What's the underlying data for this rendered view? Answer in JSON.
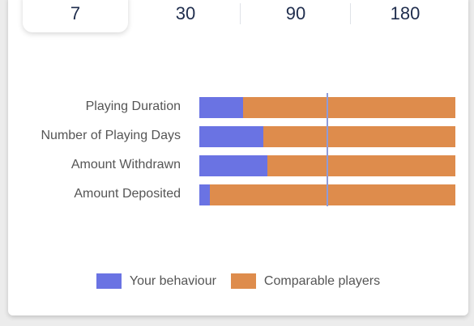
{
  "period_tabs": {
    "items": [
      {
        "label": "7",
        "selected": true
      },
      {
        "label": "30",
        "selected": false
      },
      {
        "label": "90",
        "selected": false
      },
      {
        "label": "180",
        "selected": false
      }
    ]
  },
  "chart_data": {
    "type": "bar",
    "orientation": "horizontal",
    "stacked": true,
    "categories": [
      "Playing Duration",
      "Number of Playing Days",
      "Amount Withdrawn",
      "Amount Deposited"
    ],
    "series": [
      {
        "name": "Your behaviour",
        "values": [
          0.17,
          0.25,
          0.265,
          0.04
        ],
        "color": "#6a73e3"
      },
      {
        "name": "Comparable players",
        "values": [
          0.83,
          0.75,
          0.735,
          0.96
        ],
        "color": "#de8c4c"
      }
    ],
    "reference_line": 0.5,
    "reference_line_color": "#8e9bd8",
    "legend_position": "bottom-center"
  },
  "legend": {
    "items": [
      {
        "label": "Your behaviour",
        "color": "#6a73e3"
      },
      {
        "label": "Comparable players",
        "color": "#de8c4c"
      }
    ]
  }
}
